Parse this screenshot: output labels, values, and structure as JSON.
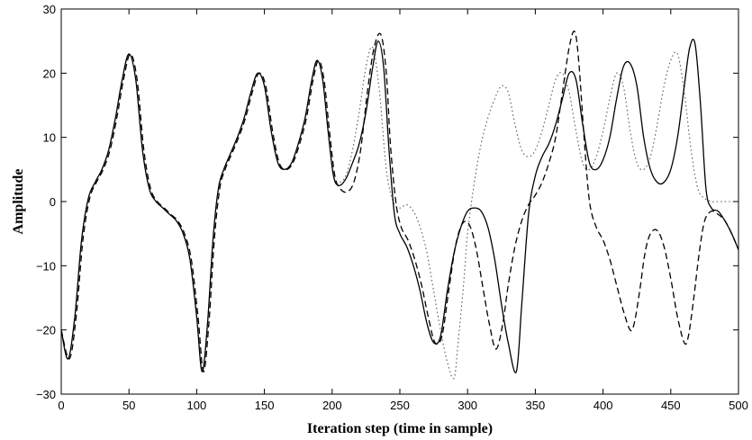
{
  "chart_data": {
    "type": "line",
    "title": "",
    "xlabel": "Iteration step (time in sample)",
    "ylabel": "Amplitude",
    "xlim": [
      0,
      500
    ],
    "ylim": [
      -30,
      30
    ],
    "xticks": [
      0,
      50,
      100,
      150,
      200,
      250,
      300,
      350,
      400,
      450,
      500
    ],
    "yticks": [
      -30,
      -20,
      -10,
      0,
      10,
      20,
      30
    ],
    "grid": false,
    "legend": "none",
    "series": [
      {
        "style": "solid",
        "color": "#000000",
        "x": [
          0,
          5,
          10,
          15,
          20,
          25,
          30,
          35,
          40,
          45,
          50,
          55,
          60,
          65,
          70,
          75,
          80,
          85,
          90,
          95,
          100,
          104,
          108,
          112,
          116,
          120,
          125,
          130,
          135,
          140,
          145,
          150,
          155,
          160,
          165,
          170,
          175,
          180,
          185,
          189,
          193,
          197,
          201,
          205,
          210,
          215,
          220,
          225,
          230,
          234,
          238,
          242,
          246,
          250,
          255,
          260,
          265,
          270,
          275,
          280,
          285,
          290,
          295,
          300,
          305,
          310,
          315,
          320,
          325,
          330,
          336,
          340,
          345,
          350,
          355,
          360,
          365,
          370,
          375,
          380,
          385,
          390,
          395,
          400,
          405,
          410,
          415,
          420,
          425,
          430,
          435,
          440,
          445,
          450,
          455,
          460,
          464,
          468,
          472,
          476,
          480,
          485,
          490,
          495,
          500
        ],
        "y": [
          -20,
          -24.5,
          -18,
          -6,
          0.5,
          3,
          5,
          8,
          13,
          19,
          23,
          19,
          8,
          2,
          0,
          -1,
          -2,
          -3,
          -5,
          -9,
          -18,
          -26.5,
          -19,
          -6,
          2,
          5,
          7.5,
          10,
          13,
          17,
          20,
          18,
          11,
          6,
          5,
          6,
          9,
          13,
          19,
          22,
          19,
          11,
          4,
          2.5,
          3.5,
          6,
          9,
          14,
          21,
          25,
          21,
          8,
          -2,
          -5,
          -7,
          -10,
          -14,
          -19,
          -22,
          -21,
          -14,
          -8,
          -4,
          -1.5,
          -1,
          -1.5,
          -4,
          -9,
          -16,
          -22,
          -26.5,
          -16,
          -2,
          4,
          7,
          9,
          12,
          16,
          20,
          19,
          12,
          6,
          5,
          6.5,
          10,
          16,
          21,
          21.5,
          18,
          10,
          5,
          3,
          3,
          5,
          10,
          18,
          24,
          24.5,
          15,
          2,
          -1,
          -1.5,
          -3,
          -5,
          -7.5
        ]
      },
      {
        "style": "dashed",
        "color": "#000000",
        "x": [
          0,
          6,
          11,
          16,
          21,
          26,
          31,
          36,
          41,
          46,
          51,
          56,
          61,
          66,
          71,
          76,
          81,
          86,
          91,
          96,
          101,
          105,
          109,
          113,
          117,
          121,
          126,
          131,
          136,
          141,
          146,
          151,
          156,
          161,
          166,
          171,
          176,
          181,
          186,
          190,
          194,
          198,
          202,
          206,
          211,
          216,
          221,
          226,
          231,
          236,
          240,
          243,
          247,
          251,
          256,
          261,
          266,
          271,
          276,
          281,
          286,
          291,
          296,
          301,
          306,
          311,
          316,
          321,
          326,
          330,
          335,
          340,
          345,
          350,
          355,
          360,
          365,
          370,
          375,
          379,
          382,
          386,
          390,
          395,
          400,
          405,
          410,
          415,
          420,
          423,
          427,
          431,
          435,
          440,
          445,
          450,
          455,
          460,
          463,
          467,
          471,
          475,
          480,
          485,
          490,
          495,
          500
        ],
        "y": [
          -20,
          -24.5,
          -18,
          -6,
          0.5,
          3,
          5,
          8,
          13,
          19,
          23,
          19,
          8,
          2,
          0,
          -1,
          -2,
          -3,
          -5,
          -9,
          -18,
          -26.5,
          -19,
          -6,
          2,
          5,
          7.5,
          10,
          13,
          17,
          20,
          18,
          11,
          6,
          5,
          6,
          9,
          13,
          19,
          22,
          19,
          11,
          4,
          2,
          1.5,
          3,
          8,
          17,
          24,
          26,
          20,
          9,
          0,
          -4,
          -6,
          -9,
          -13,
          -18,
          -22,
          -21,
          -14,
          -7,
          -3.5,
          -3.5,
          -7,
          -13,
          -19,
          -23,
          -19,
          -13,
          -7,
          -3,
          -0.5,
          1,
          3,
          6,
          10,
          17,
          24,
          26.5,
          22,
          10,
          0,
          -4,
          -6,
          -9,
          -13,
          -17,
          -20,
          -19,
          -14,
          -8,
          -5,
          -4.5,
          -7,
          -12,
          -18,
          -22,
          -21,
          -15,
          -8,
          -3,
          -1.5,
          -2,
          -3,
          -5,
          -7.5
        ]
      },
      {
        "style": "dotted",
        "color": "#555555",
        "x": [
          0,
          5,
          10,
          15,
          20,
          25,
          30,
          35,
          40,
          45,
          50,
          55,
          60,
          65,
          70,
          75,
          80,
          85,
          90,
          95,
          100,
          104,
          108,
          112,
          116,
          120,
          125,
          130,
          135,
          140,
          145,
          150,
          155,
          160,
          165,
          170,
          175,
          180,
          185,
          189,
          193,
          197,
          201,
          205,
          210,
          215,
          220,
          225,
          230,
          235,
          240,
          245,
          250,
          255,
          260,
          265,
          270,
          275,
          280,
          285,
          290,
          293,
          297,
          300,
          305,
          310,
          315,
          320,
          325,
          330,
          335,
          340,
          345,
          350,
          355,
          360,
          365,
          370,
          375,
          380,
          385,
          390,
          395,
          400,
          405,
          410,
          415,
          420,
          425,
          430,
          435,
          440,
          445,
          450,
          455,
          460,
          465,
          470,
          475,
          480,
          485,
          490,
          495,
          500
        ],
        "y": [
          -20,
          -24.5,
          -18,
          -6,
          0.5,
          3,
          5,
          8,
          13,
          19,
          23,
          19,
          8,
          2,
          0,
          -1,
          -2,
          -3,
          -5,
          -9,
          -18,
          -26.5,
          -19,
          -6,
          2,
          5,
          7.5,
          10,
          13,
          17,
          20,
          18,
          11,
          6,
          5,
          6,
          9,
          13,
          19,
          22,
          19,
          11,
          4,
          3,
          4,
          8,
          14,
          21,
          24,
          17,
          5,
          0,
          -1,
          -0.5,
          -1.5,
          -4,
          -8,
          -14,
          -20,
          -25,
          -27.5,
          -22,
          -13,
          -5,
          3,
          9,
          13,
          16,
          18,
          17,
          12,
          8,
          7,
          8,
          11,
          15,
          19,
          20,
          17,
          11,
          6,
          5,
          7,
          11,
          16,
          20,
          18,
          11,
          6,
          5,
          7,
          12,
          18,
          22,
          23,
          17,
          8,
          2,
          0.5,
          0,
          0,
          0,
          0,
          0
        ]
      }
    ]
  }
}
